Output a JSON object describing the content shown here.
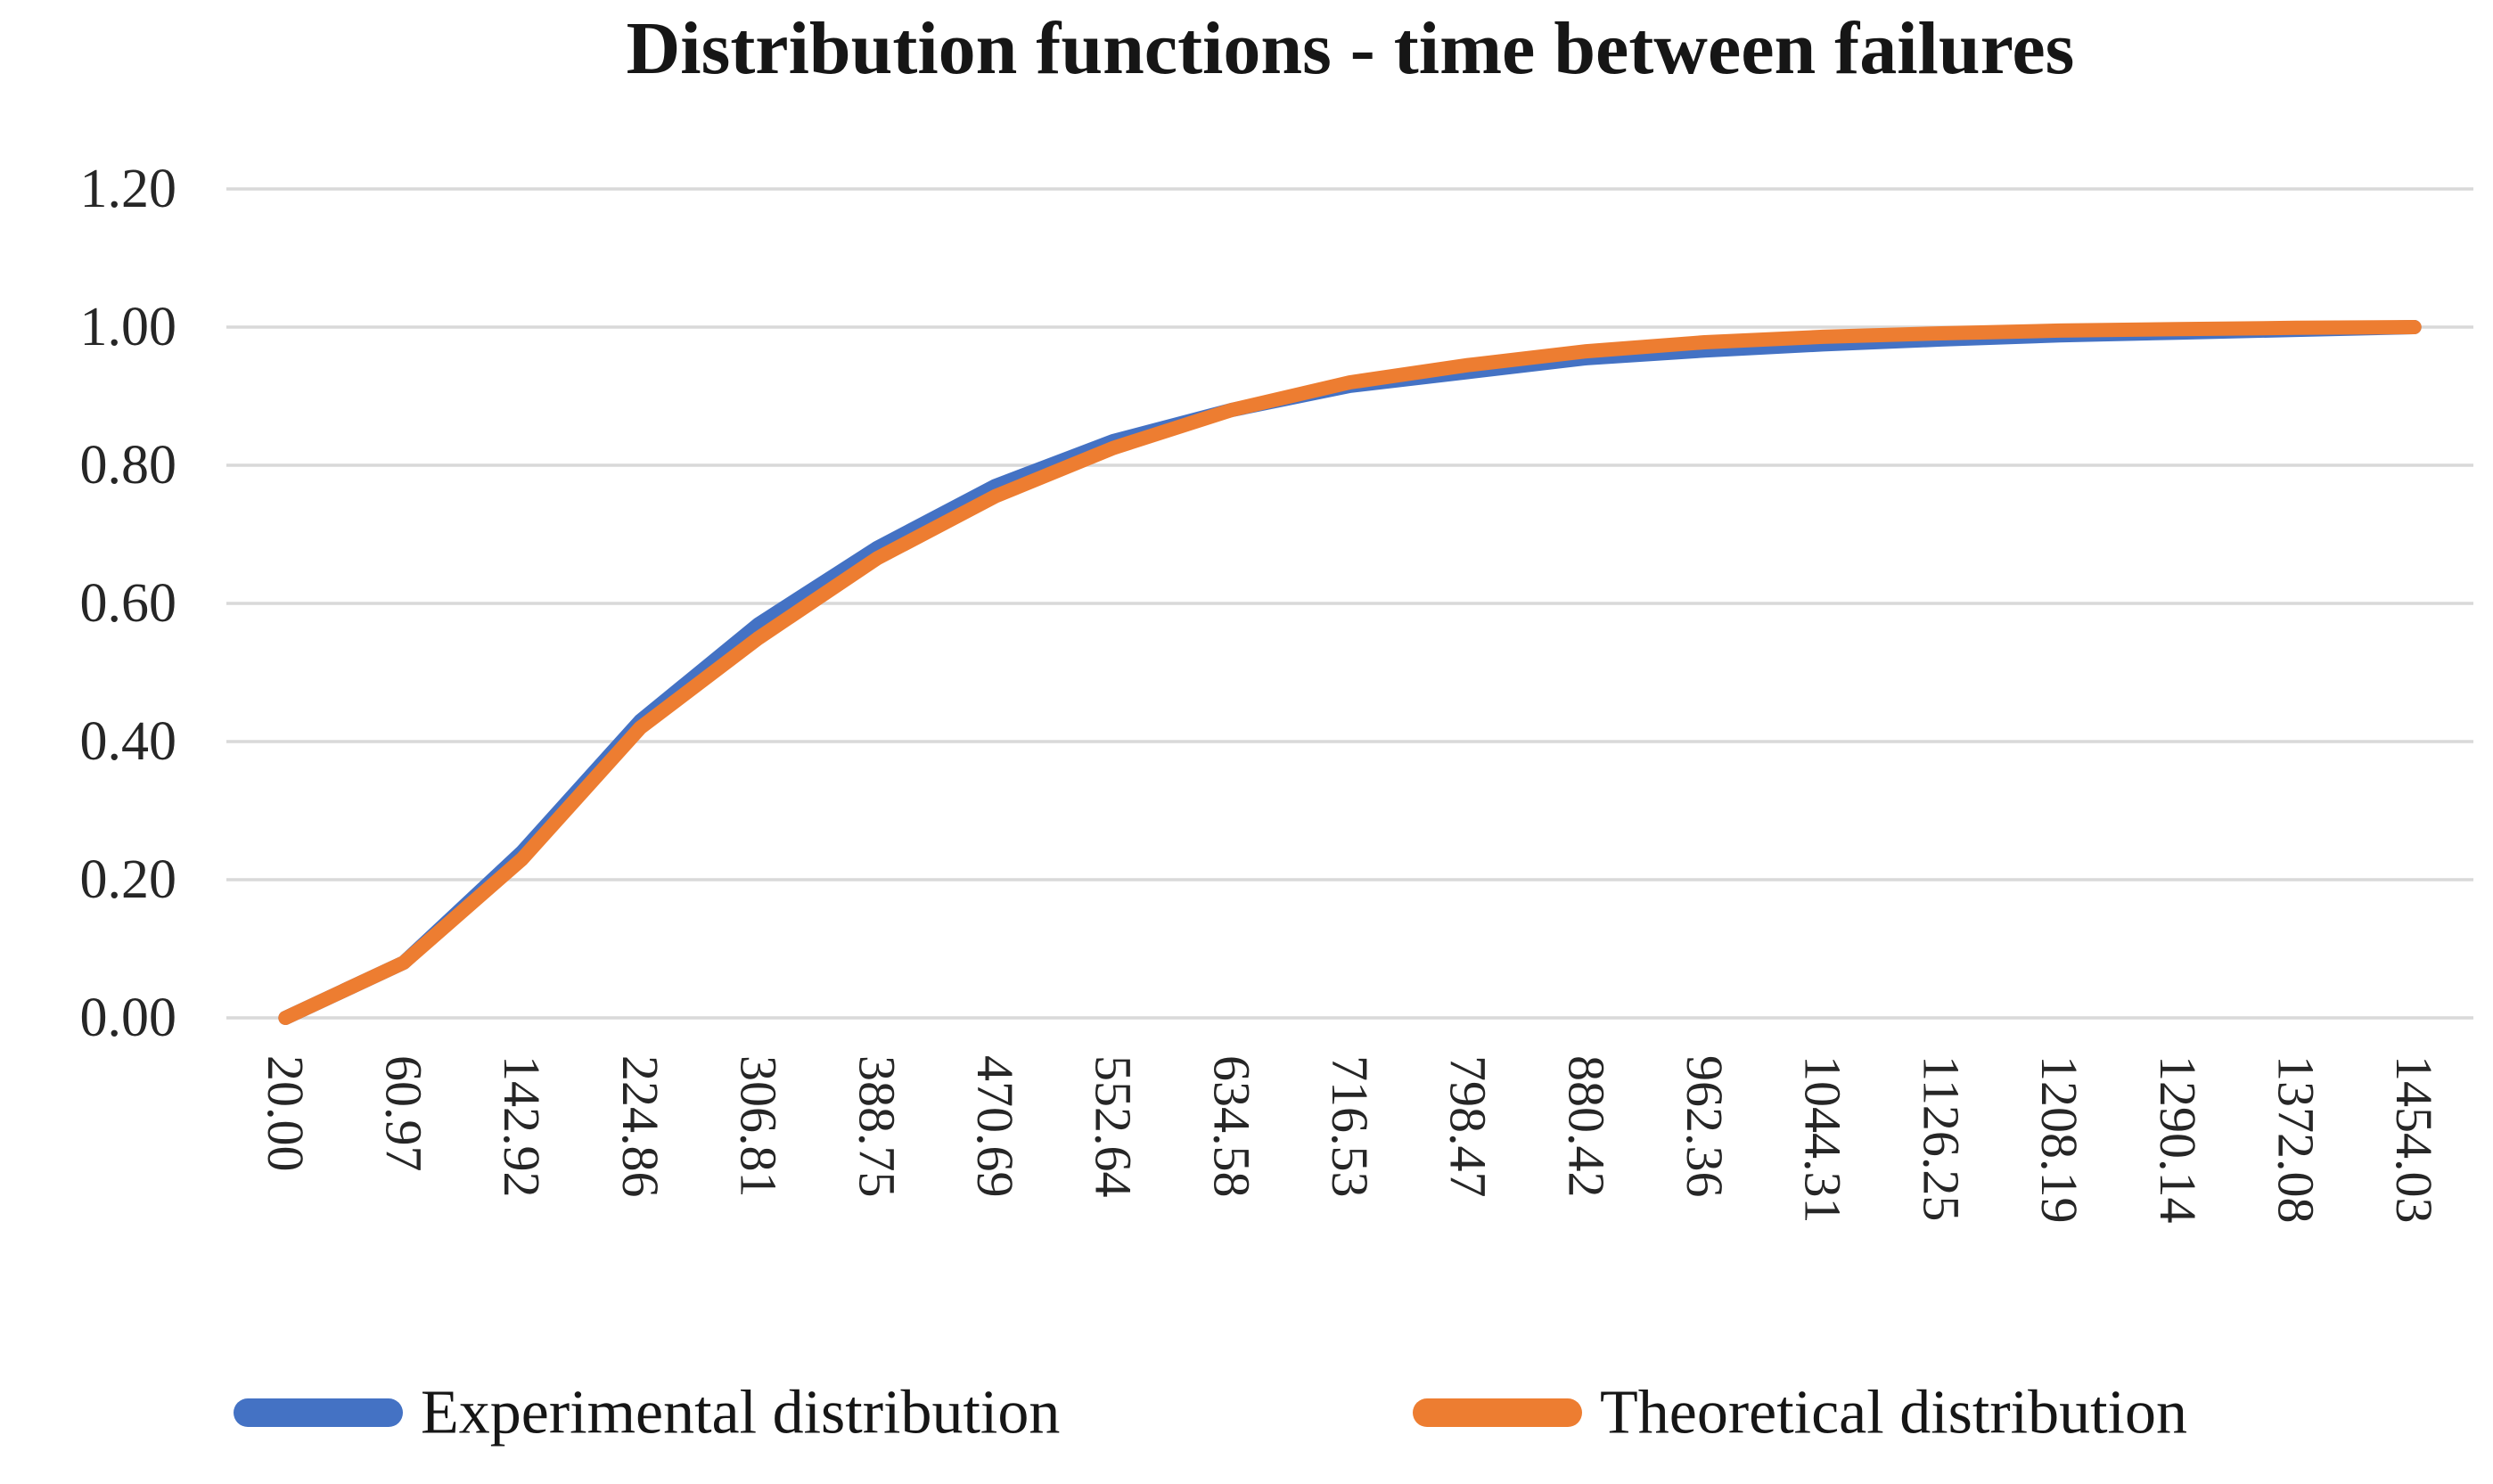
{
  "title": "Distribution functions - time between failures",
  "chart_data": {
    "type": "line",
    "title": "Distribution functions - time between failures",
    "categories": [
      "20.00",
      "60.97",
      "142.92",
      "224.86",
      "306.81",
      "388.75",
      "470.69",
      "552.64",
      "634.58",
      "716.53",
      "798.47",
      "880.42",
      "962.36",
      "1044.31",
      "1126.25",
      "1208.19",
      "1290.14",
      "1372.08",
      "1454.03"
    ],
    "series": [
      {
        "name": "Experimental distribution",
        "color": "#4472C4",
        "values": [
          0.0,
          0.08,
          0.24,
          0.43,
          0.57,
          0.68,
          0.77,
          0.835,
          0.88,
          0.915,
          0.935,
          0.955,
          0.966,
          0.975,
          0.982,
          0.988,
          0.992,
          0.996,
          1.0
        ]
      },
      {
        "name": "Theoretical distribution",
        "color": "#ED7D31",
        "values": [
          0.0,
          0.08,
          0.23,
          0.42,
          0.55,
          0.665,
          0.755,
          0.825,
          0.88,
          0.92,
          0.945,
          0.965,
          0.978,
          0.986,
          0.991,
          0.995,
          0.997,
          0.999,
          1.0
        ]
      }
    ],
    "xlabel": "",
    "ylabel": "",
    "y_ticks": [
      "0.00",
      "0.20",
      "0.40",
      "0.60",
      "0.80",
      "1.00",
      "1.20"
    ],
    "ylim": [
      0,
      1.2
    ],
    "grid": "horizontal",
    "gridline_color": "#D9D9D9",
    "x_label_rotation": 90,
    "legend_position": "bottom"
  }
}
